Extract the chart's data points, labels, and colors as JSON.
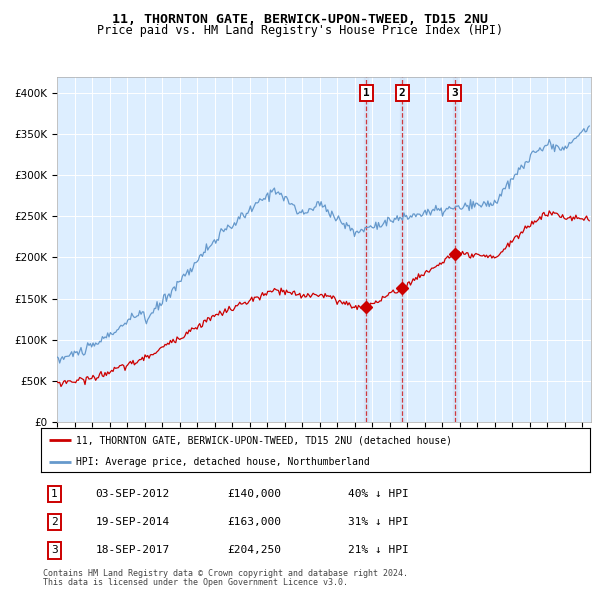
{
  "title": "11, THORNTON GATE, BERWICK-UPON-TWEED, TD15 2NU",
  "subtitle": "Price paid vs. HM Land Registry's House Price Index (HPI)",
  "legend_line1": "11, THORNTON GATE, BERWICK-UPON-TWEED, TD15 2NU (detached house)",
  "legend_line2": "HPI: Average price, detached house, Northumberland",
  "sales": [
    {
      "label": "1",
      "date": "03-SEP-2012",
      "price": 140000,
      "pct": "40% ↓ HPI",
      "x_year": 2012.67
    },
    {
      "label": "2",
      "date": "19-SEP-2014",
      "price": 163000,
      "pct": "31% ↓ HPI",
      "x_year": 2014.71
    },
    {
      "label": "3",
      "date": "18-SEP-2017",
      "price": 204250,
      "pct": "21% ↓ HPI",
      "x_year": 2017.71
    }
  ],
  "footer1": "Contains HM Land Registry data © Crown copyright and database right 2024.",
  "footer2": "This data is licensed under the Open Government Licence v3.0.",
  "red_color": "#cc0000",
  "blue_color": "#6699cc",
  "bg_color": "#ddeeff",
  "xlim": [
    1995,
    2025.5
  ],
  "ylim": [
    0,
    420000
  ],
  "yticks": [
    0,
    50000,
    100000,
    150000,
    200000,
    250000,
    300000,
    350000,
    400000
  ]
}
